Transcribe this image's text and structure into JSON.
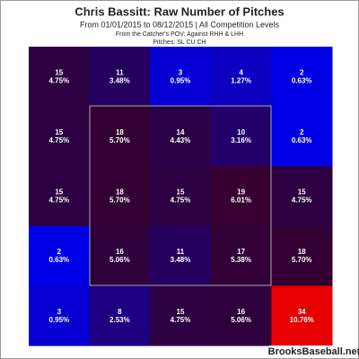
{
  "chart_data": {
    "type": "heatmap",
    "title": "Chris Bassitt: Raw Number of Pitches",
    "subtitle": "From 01/01/2015 to 08/12/2015 | All Competition Levels",
    "note": "From the Catcher's POV:  Against RHH & LHH",
    "pitches": "Pitches:  SL  CU  CH",
    "source": "BrooksBaseball.net",
    "low_color": "#0000e6",
    "high_color": "#e60000",
    "values": [
      [
        15,
        11,
        3,
        4,
        2
      ],
      [
        15,
        18,
        14,
        10,
        2
      ],
      [
        15,
        18,
        15,
        19,
        15
      ],
      [
        2,
        16,
        11,
        17,
        18
      ],
      [
        3,
        8,
        15,
        16,
        34
      ]
    ],
    "percent_labels": [
      [
        "4.75%",
        "3.48%",
        "0.95%",
        "1.27%",
        "0.63%"
      ],
      [
        "4.75%",
        "5.70%",
        "4.43%",
        "3.16%",
        "0.63%"
      ],
      [
        "4.75%",
        "5.70%",
        "4.75%",
        "6.01%",
        "4.75%"
      ],
      [
        "0.63%",
        "5.06%",
        "3.48%",
        "5.38%",
        "5.70%"
      ],
      [
        "0.95%",
        "2.53%",
        "4.75%",
        "5.06%",
        "10.76%"
      ]
    ]
  }
}
